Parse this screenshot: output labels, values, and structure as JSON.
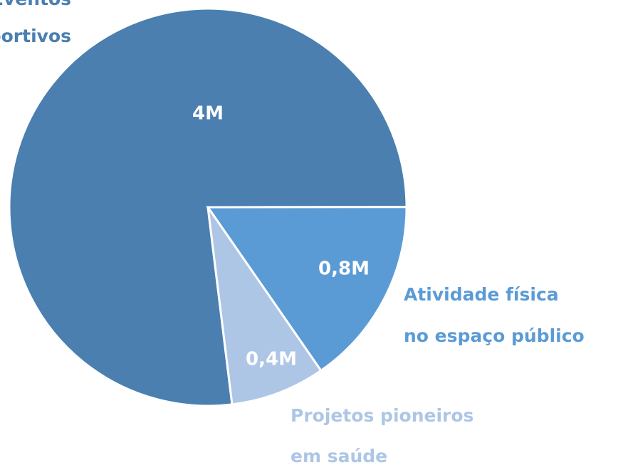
{
  "chart_data": {
    "type": "pie",
    "categories": [
      [
        "Eventos",
        "esportivos"
      ],
      [
        "Atividade física",
        "no espaço público"
      ],
      [
        "Projetos pioneiros",
        "em saúde"
      ]
    ],
    "values": [
      4,
      0.8,
      0.4
    ],
    "value_labels": [
      "4M",
      "0,8M",
      "0,4M"
    ],
    "colors": [
      "#4a7fb0",
      "#5b9bd5",
      "#adc6e6"
    ]
  }
}
